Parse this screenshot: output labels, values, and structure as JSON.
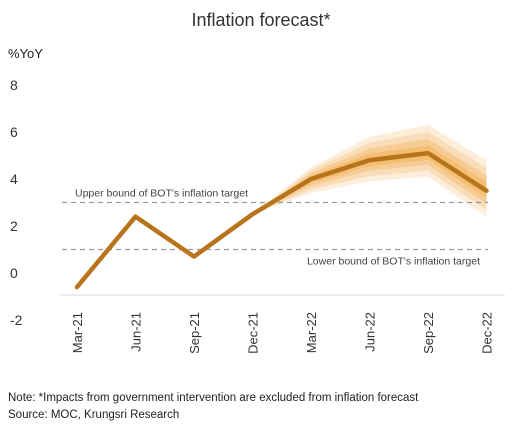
{
  "chart_data": {
    "type": "line",
    "title": "Inflation forecast*",
    "ylabel": "%YoY",
    "xlabel": "",
    "categories": [
      "Mar-21",
      "Jun-21",
      "Sep-21",
      "Dec-21",
      "Mar-22",
      "Jun-22",
      "Sep-22",
      "Dec-22"
    ],
    "series": [
      {
        "values": [
          -0.6,
          2.4,
          0.7,
          2.5,
          4.0,
          4.8,
          5.1,
          3.5
        ]
      }
    ],
    "forecast_band": {
      "categories": [
        "Dec-21",
        "Mar-22",
        "Jun-22",
        "Sep-22",
        "Dec-22"
      ],
      "outer_lower": [
        2.5,
        3.4,
        3.9,
        4.1,
        2.4
      ],
      "outer_upper": [
        2.5,
        4.5,
        5.8,
        6.3,
        4.8
      ]
    },
    "reference_lines": [
      {
        "label": "Upper bound of BOT's inflation target",
        "value": 3
      },
      {
        "label": "Lower bound of BOT's inflation target",
        "value": 1
      }
    ],
    "yticks": [
      "8",
      "6",
      "4",
      "2",
      "0",
      "-2"
    ],
    "ylim": [
      -2,
      8
    ],
    "grid": false,
    "legend": "none",
    "colors": {
      "line": "#b8741a",
      "band": "#f0a23a",
      "refline": "#999999"
    }
  },
  "footer": {
    "note": "Note: *Impacts from government intervention are excluded from inflation forecast",
    "source": "Source:  MOC, Krungsri Research"
  }
}
